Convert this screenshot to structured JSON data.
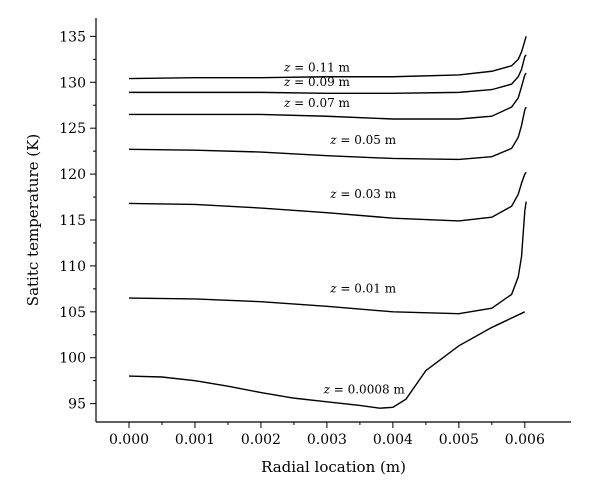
{
  "chart_data": {
    "type": "line",
    "title": "",
    "xlabel": "Radial location (m)",
    "ylabel": "Satitc temperature (K)",
    "xlim": [
      -0.0005,
      0.0067
    ],
    "ylim": [
      93,
      137
    ],
    "xticks": [
      0.0,
      0.001,
      0.002,
      0.003,
      0.004,
      0.005,
      0.006
    ],
    "xtick_labels": [
      "0.000",
      "0.001",
      "0.002",
      "0.003",
      "0.004",
      "0.005",
      "0.006"
    ],
    "yticks": [
      95,
      100,
      105,
      110,
      115,
      120,
      125,
      130,
      135
    ],
    "ytick_labels": [
      "95",
      "100",
      "105",
      "110",
      "115",
      "120",
      "125",
      "130",
      "135"
    ],
    "grid": false,
    "series": [
      {
        "name": "z = 0.11 m",
        "label_z": "z",
        "label_rest": " = 0.11 m",
        "label_at": [
          0.00235,
          131.2
        ],
        "x": [
          0.0,
          0.001,
          0.002,
          0.003,
          0.004,
          0.005,
          0.0055,
          0.0058,
          0.0059,
          0.00595,
          0.006,
          0.00602
        ],
        "y": [
          130.4,
          130.5,
          130.5,
          130.6,
          130.6,
          130.8,
          131.2,
          131.8,
          132.5,
          133.3,
          134.5,
          135.0
        ]
      },
      {
        "name": "z = 0.09 m",
        "label_z": "z",
        "label_rest": " = 0.09 m",
        "label_at": [
          0.00235,
          129.6
        ],
        "x": [
          0.0,
          0.001,
          0.002,
          0.003,
          0.004,
          0.005,
          0.0055,
          0.0058,
          0.0059,
          0.00595,
          0.006,
          0.00602
        ],
        "y": [
          128.9,
          128.9,
          128.9,
          128.8,
          128.8,
          128.9,
          129.2,
          129.8,
          130.6,
          131.4,
          132.8,
          133.0
        ]
      },
      {
        "name": "z = 0.07 m",
        "label_z": "z",
        "label_rest": " = 0.07 m",
        "label_at": [
          0.00235,
          127.3
        ],
        "x": [
          0.0,
          0.001,
          0.002,
          0.003,
          0.004,
          0.005,
          0.0055,
          0.0058,
          0.0059,
          0.00595,
          0.006,
          0.00602
        ],
        "y": [
          126.5,
          126.5,
          126.5,
          126.3,
          126.0,
          126.0,
          126.3,
          127.3,
          128.3,
          129.5,
          130.8,
          131.0
        ]
      },
      {
        "name": "z = 0.05 m",
        "label_z": "z",
        "label_rest": " = 0.05 m",
        "label_at": [
          0.00305,
          123.3
        ],
        "x": [
          0.0,
          0.001,
          0.002,
          0.003,
          0.004,
          0.005,
          0.0055,
          0.0058,
          0.0059,
          0.00595,
          0.006,
          0.00602
        ],
        "y": [
          122.7,
          122.6,
          122.4,
          122.0,
          121.7,
          121.6,
          121.9,
          122.8,
          124.0,
          125.3,
          127.0,
          127.3
        ]
      },
      {
        "name": "z = 0.03 m",
        "label_z": "z",
        "label_rest": " = 0.03 m",
        "label_at": [
          0.00305,
          117.4
        ],
        "x": [
          0.0,
          0.001,
          0.002,
          0.003,
          0.004,
          0.005,
          0.0055,
          0.0058,
          0.0059,
          0.00595,
          0.006,
          0.00602
        ],
        "y": [
          116.8,
          116.7,
          116.3,
          115.8,
          115.2,
          114.9,
          115.3,
          116.5,
          117.8,
          119.0,
          120.0,
          120.2
        ]
      },
      {
        "name": "z = 0.01 m",
        "label_z": "z",
        "label_rest": " = 0.01 m",
        "label_at": [
          0.00305,
          107.1
        ],
        "x": [
          0.0,
          0.001,
          0.002,
          0.003,
          0.004,
          0.005,
          0.0055,
          0.0058,
          0.0059,
          0.00595,
          0.006,
          0.00602
        ],
        "y": [
          106.5,
          106.4,
          106.1,
          105.6,
          105.0,
          104.8,
          105.4,
          106.9,
          108.8,
          111.0,
          116.0,
          117.0
        ]
      },
      {
        "name": "z = 0.0008 m",
        "label_z": "z",
        "label_rest": " = 0.0008 m",
        "label_at": [
          0.00295,
          96.1
        ],
        "x": [
          0.0,
          0.0005,
          0.001,
          0.0015,
          0.002,
          0.0025,
          0.003,
          0.0035,
          0.0038,
          0.004,
          0.0042,
          0.0045,
          0.005,
          0.0055,
          0.006
        ],
        "y": [
          98.0,
          97.9,
          97.5,
          96.9,
          96.2,
          95.6,
          95.2,
          94.8,
          94.5,
          94.6,
          95.5,
          98.6,
          101.3,
          103.3,
          105.0
        ]
      }
    ]
  }
}
